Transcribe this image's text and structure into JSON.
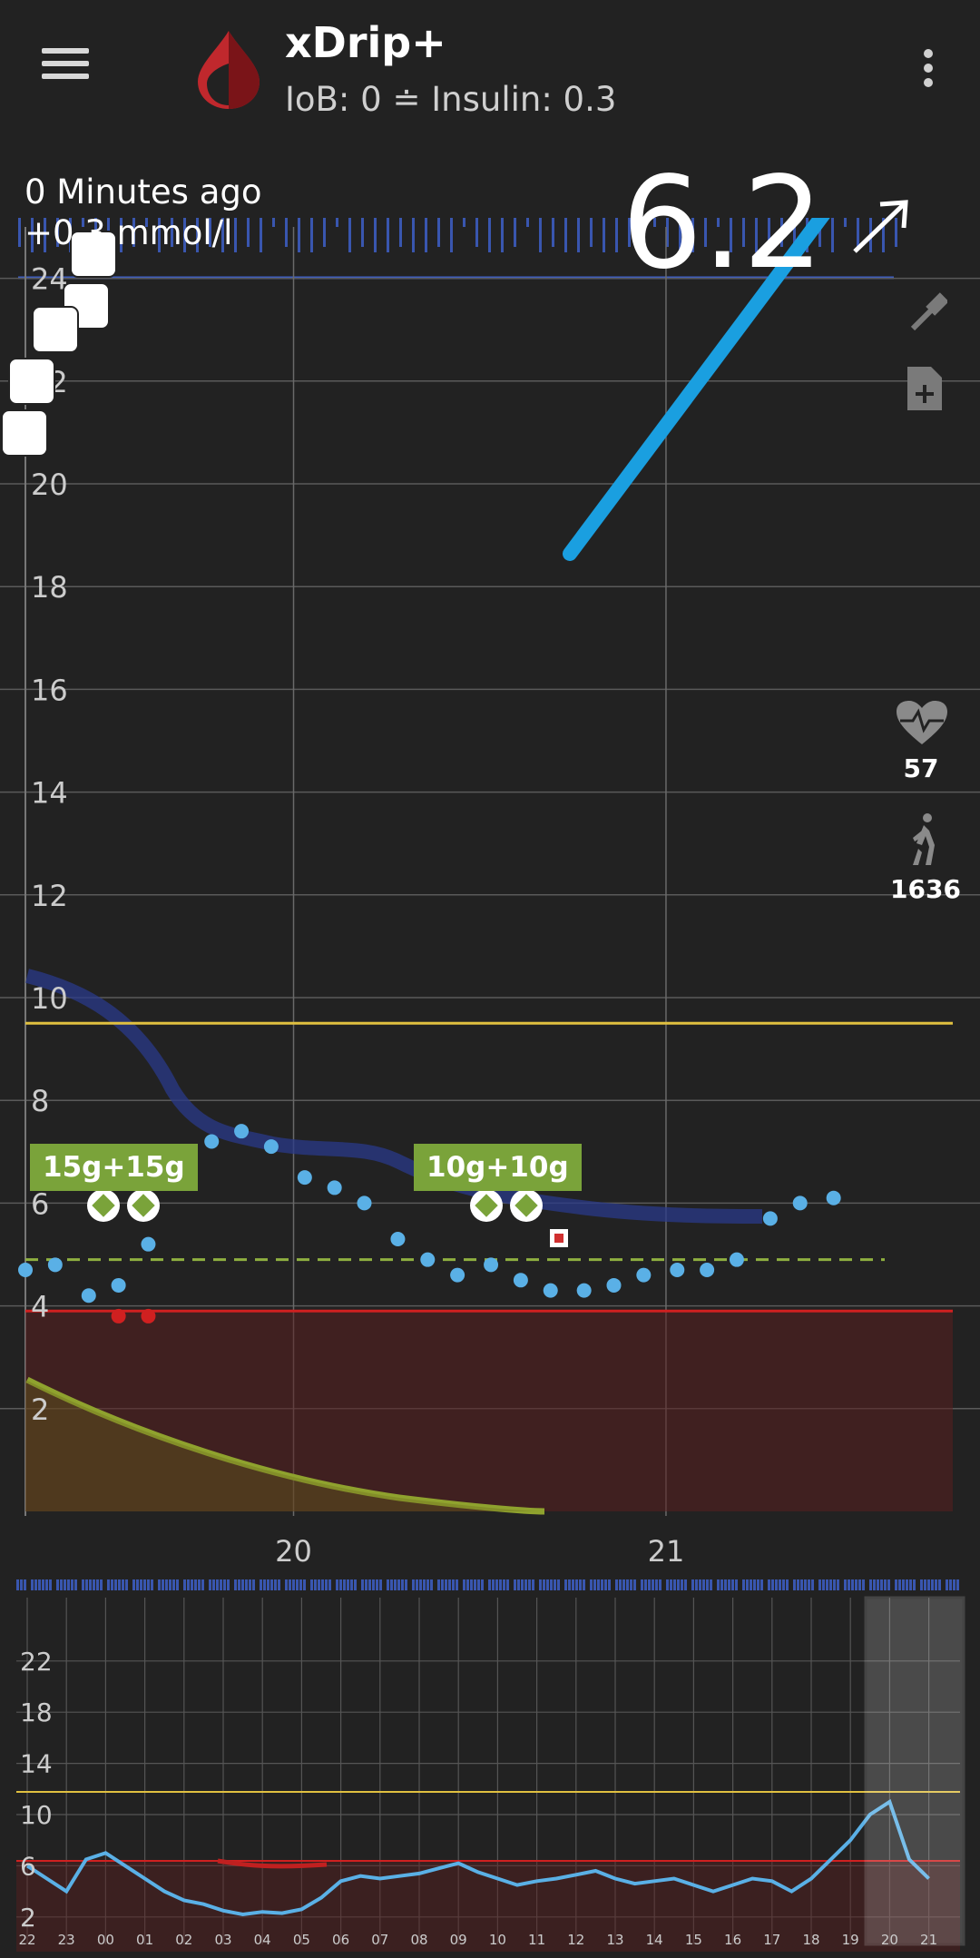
{
  "appbar": {
    "title": "xDrip+",
    "subtitle": "IoB: 0 ≐ Insulin: 0.3",
    "menu_icon": "hamburger-menu-icon",
    "overflow_icon": "overflow-menu-icon"
  },
  "status": {
    "bg_value": "6.2",
    "trend": "rising-slightly",
    "minutes_ago": "0 Minutes ago",
    "delta": "+0.3 mmol/l"
  },
  "side": {
    "heart_rate": "57",
    "steps": "1636"
  },
  "treatments": {
    "carb_labels": [
      "15g+15g",
      "10g+10g"
    ]
  },
  "colors": {
    "background": "#222222",
    "in_range": "#5ab0e6",
    "low": "#d02020",
    "high_line": "#e0c040",
    "target_line": "#8fb040",
    "carbs": "#7aa33a",
    "basal": "#3d5fc8",
    "annotation_arrow": "#1a9fe0"
  },
  "chart_data": [
    {
      "type": "scatter",
      "title": "",
      "unit": "mmol/l",
      "x_ticks": [
        "20",
        "21"
      ],
      "y_ticks": [
        2,
        4,
        6,
        8,
        10,
        12,
        14,
        16,
        18,
        20,
        22,
        24
      ],
      "ylim": [
        0,
        25
      ],
      "xlim": [
        19.28,
        21.77
      ],
      "high_line": 9.5,
      "low_line": 3.9,
      "target_line": 4.9,
      "series": [
        {
          "name": "",
          "x": [
            19.28,
            19.36,
            19.45,
            19.53,
            19.61,
            19.7,
            19.78,
            19.86,
            19.94,
            20.03,
            20.11,
            20.19,
            20.28,
            20.36,
            20.44,
            20.53,
            20.61,
            20.69,
            20.78,
            20.86,
            20.94,
            21.03,
            21.11,
            21.19,
            21.28,
            21.36,
            21.45
          ],
          "y": [
            4.7,
            4.8,
            4.2,
            4.4,
            5.2,
            6.6,
            7.2,
            7.4,
            7.1,
            6.5,
            6.3,
            6.0,
            5.3,
            4.9,
            4.6,
            4.8,
            4.5,
            4.3,
            4.3,
            4.4,
            4.6,
            4.7,
            4.7,
            4.9,
            5.7,
            6.0,
            6.1
          ]
        },
        {
          "name": "",
          "x": [
            19.53,
            19.61
          ],
          "y": [
            3.8,
            3.8
          ]
        }
      ],
      "carbs": [
        {
          "x": 19.55,
          "label": "15g+15g"
        },
        {
          "x": 20.52,
          "label": "10g+10g"
        }
      ]
    },
    {
      "type": "line",
      "title": "",
      "x_ticks": [
        "22",
        "23",
        "00",
        "01",
        "02",
        "03",
        "04",
        "05",
        "06",
        "07",
        "08",
        "09",
        "10",
        "11",
        "12",
        "13",
        "14",
        "15",
        "16",
        "17",
        "18",
        "19",
        "20",
        "21"
      ],
      "y_ticks": [
        2,
        6,
        10,
        14,
        18,
        22
      ],
      "ylim": [
        0,
        24
      ],
      "series": [
        {
          "name": "",
          "x": [
            0,
            0.5,
            1,
            1.5,
            2,
            2.5,
            3,
            3.5,
            4,
            4.5,
            5,
            5.5,
            6,
            6.5,
            7,
            7.5,
            8,
            8.5,
            9,
            9.5,
            10,
            10.5,
            11,
            11.5,
            12,
            12.5,
            13,
            13.5,
            14,
            14.5,
            15,
            15.5,
            16,
            16.5,
            17,
            17.5,
            18,
            18.5,
            19,
            19.5,
            20,
            20.5,
            21,
            21.5,
            22,
            22.5,
            23
          ],
          "y": [
            6,
            5,
            4,
            6.5,
            7,
            6,
            5,
            4,
            3.3,
            3,
            2.5,
            2.2,
            2.4,
            2.3,
            2.6,
            3.5,
            4.8,
            5.2,
            5.0,
            5.2,
            5.4,
            5.8,
            6.2,
            5.5,
            5.0,
            4.5,
            4.8,
            5.0,
            5.3,
            5.6,
            5.0,
            4.6,
            4.8,
            5.0,
            4.5,
            4.0,
            4.5,
            5.0,
            4.8,
            4.0,
            5.0,
            6.5,
            8,
            10,
            11,
            6.5,
            5.0
          ]
        }
      ]
    }
  ]
}
